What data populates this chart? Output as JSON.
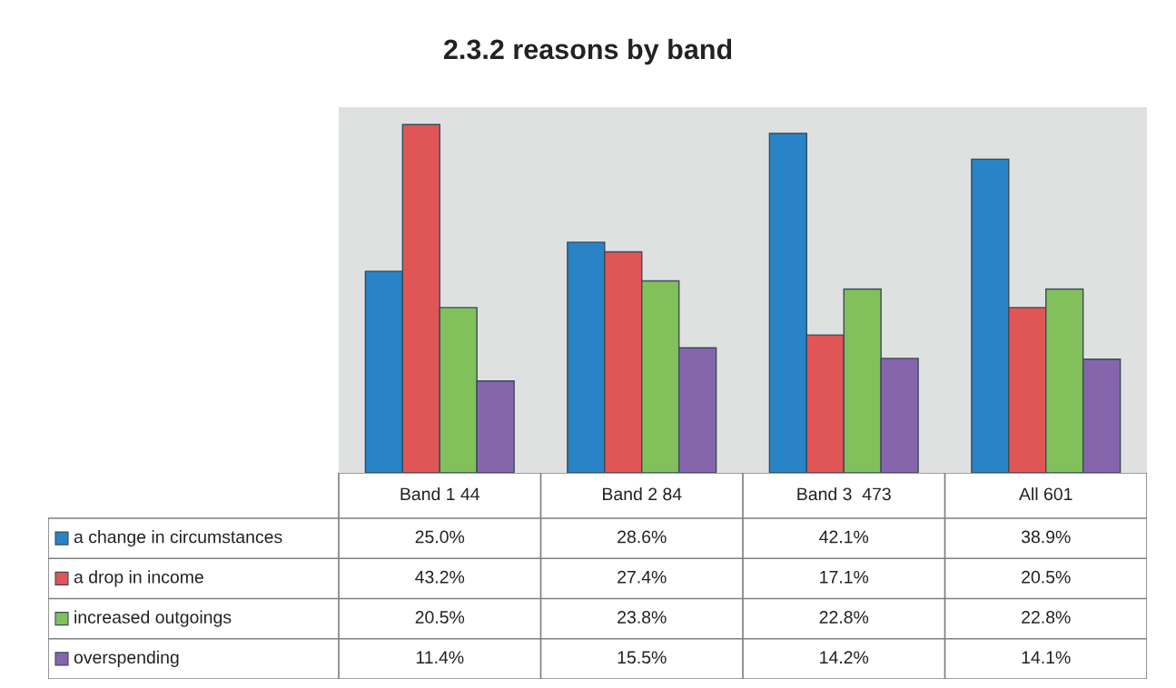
{
  "chart_data": {
    "type": "bar",
    "title": "2.3.2 reasons by band",
    "categories": [
      "Band 1 44",
      "Band 2 84",
      "Band 3  473",
      "All 601"
    ],
    "series": [
      {
        "name": "a change in circumstances",
        "color": "#2884c6",
        "values": [
          25.0,
          28.6,
          42.1,
          38.9
        ],
        "value_labels": [
          "25.0%",
          "28.6%",
          "42.1%",
          "38.9%"
        ]
      },
      {
        "name": "a drop in income",
        "color": "#e05656",
        "values": [
          43.2,
          27.4,
          17.1,
          20.5
        ],
        "value_labels": [
          "43.2%",
          "27.4%",
          "17.1%",
          "20.5%"
        ]
      },
      {
        "name": "increased outgoings",
        "color": "#82c05c",
        "values": [
          20.5,
          23.8,
          22.8,
          22.8
        ],
        "value_labels": [
          "20.5%",
          "23.8%",
          "22.8%",
          "22.8%"
        ]
      },
      {
        "name": "overspending",
        "color": "#8566ad",
        "values": [
          11.4,
          15.5,
          14.2,
          14.1
        ],
        "value_labels": [
          "11.4%",
          "15.5%",
          "14.2%",
          "14.1%"
        ]
      }
    ],
    "legend": "bottom"
  }
}
